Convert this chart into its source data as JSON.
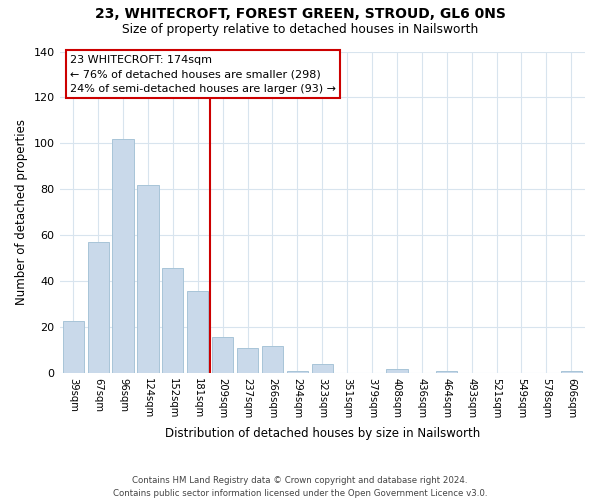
{
  "title": "23, WHITECROFT, FOREST GREEN, STROUD, GL6 0NS",
  "subtitle": "Size of property relative to detached houses in Nailsworth",
  "xlabel": "Distribution of detached houses by size in Nailsworth",
  "ylabel": "Number of detached properties",
  "bar_labels": [
    "39sqm",
    "67sqm",
    "96sqm",
    "124sqm",
    "152sqm",
    "181sqm",
    "209sqm",
    "237sqm",
    "266sqm",
    "294sqm",
    "323sqm",
    "351sqm",
    "379sqm",
    "408sqm",
    "436sqm",
    "464sqm",
    "493sqm",
    "521sqm",
    "549sqm",
    "578sqm",
    "606sqm"
  ],
  "bar_values": [
    23,
    57,
    102,
    82,
    46,
    36,
    16,
    11,
    12,
    1,
    4,
    0,
    0,
    2,
    0,
    1,
    0,
    0,
    0,
    0,
    1
  ],
  "bar_color": "#c9d9ea",
  "bar_edge_color": "#a8c4d8",
  "ylim": [
    0,
    140
  ],
  "yticks": [
    0,
    20,
    40,
    60,
    80,
    100,
    120,
    140
  ],
  "vline_x": 5.5,
  "vline_color": "#cc0000",
  "annotation_title": "23 WHITECROFT: 174sqm",
  "annotation_line1": "← 76% of detached houses are smaller (298)",
  "annotation_line2": "24% of semi-detached houses are larger (93) →",
  "annotation_box_color": "#ffffff",
  "annotation_box_edge": "#cc0000",
  "footer1": "Contains HM Land Registry data © Crown copyright and database right 2024.",
  "footer2": "Contains public sector information licensed under the Open Government Licence v3.0.",
  "background_color": "#ffffff",
  "grid_color": "#d8e4ee"
}
